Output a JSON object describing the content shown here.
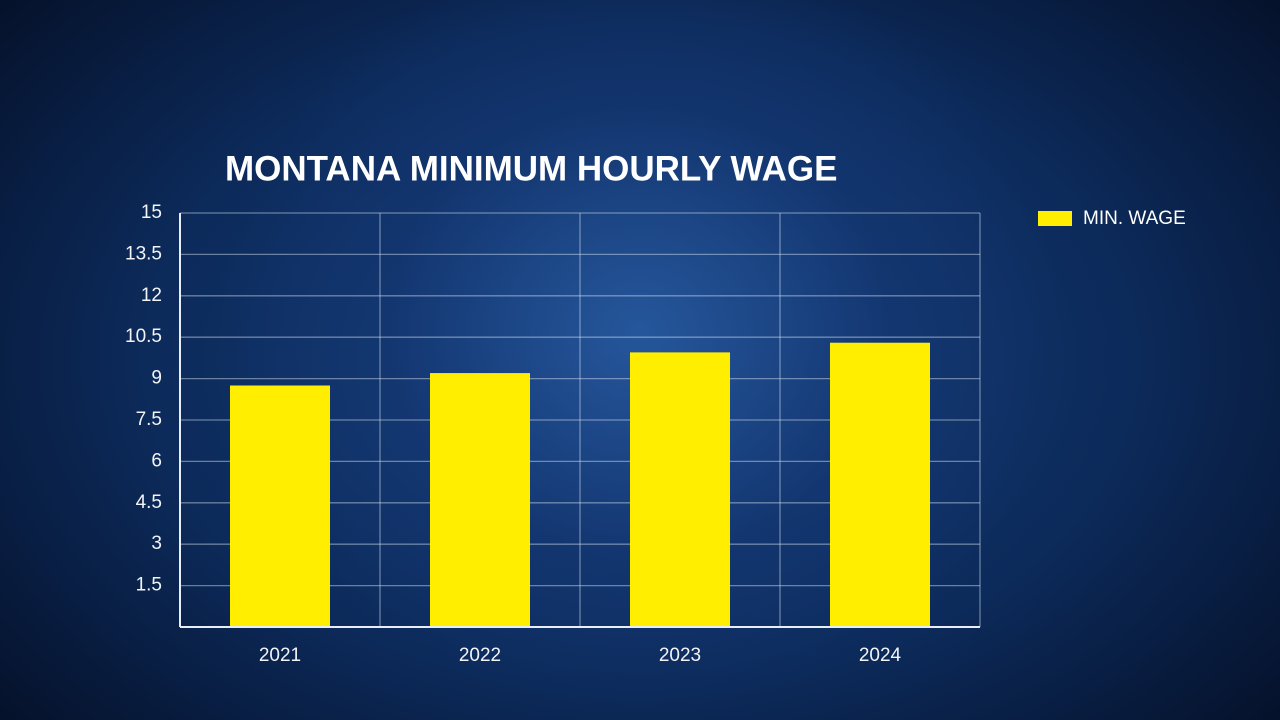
{
  "chart_data": {
    "type": "bar",
    "title": "MONTANA MINIMUM HOURLY WAGE",
    "categories": [
      "2021",
      "2022",
      "2023",
      "2024"
    ],
    "series": [
      {
        "name": "MIN. WAGE",
        "color": "#ffee00",
        "values": [
          8.75,
          9.2,
          9.95,
          10.3
        ]
      }
    ],
    "ylim": [
      0,
      15
    ],
    "yticks": [
      1.5,
      3,
      4.5,
      6,
      7.5,
      9,
      10.5,
      12,
      13.5,
      15
    ],
    "grid": true,
    "legend": "top-right"
  }
}
